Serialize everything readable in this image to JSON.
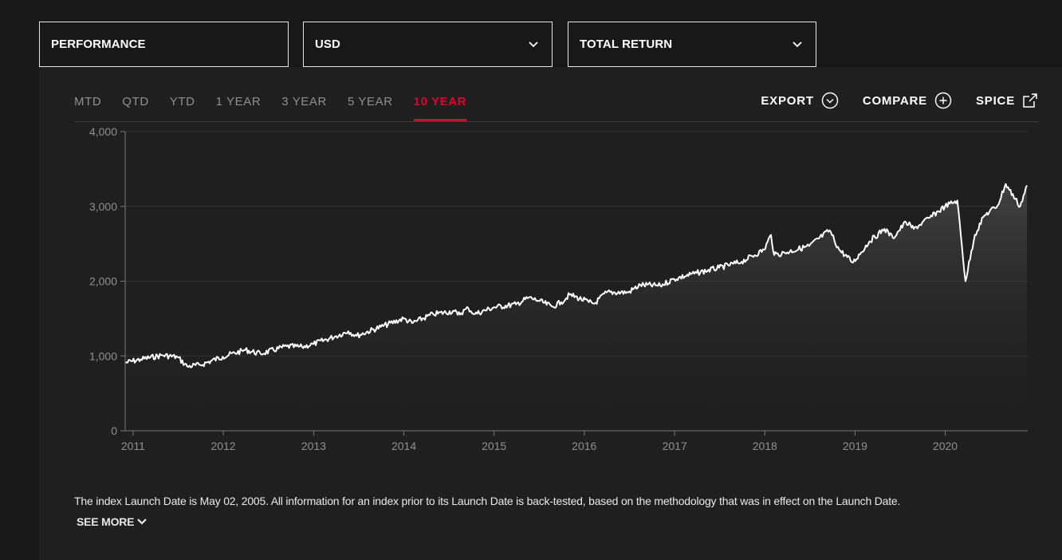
{
  "selectors": [
    {
      "label": "PERFORMANCE",
      "has_dropdown": false
    },
    {
      "label": "USD",
      "has_dropdown": true
    },
    {
      "label": "TOTAL RETURN",
      "has_dropdown": true
    }
  ],
  "tabs": [
    "MTD",
    "QTD",
    "YTD",
    "1 YEAR",
    "3 YEAR",
    "5 YEAR",
    "10 YEAR"
  ],
  "active_tab": "10 YEAR",
  "actions": [
    {
      "label": "EXPORT",
      "icon": "chevron-circle-down-icon"
    },
    {
      "label": "COMPARE",
      "icon": "plus-circle-icon"
    },
    {
      "label": "SPICE",
      "icon": "external-link-icon"
    }
  ],
  "colors": {
    "accent": "#e4002b",
    "line": "#ffffff",
    "background": "#1f1f1f",
    "page": "#181818"
  },
  "note": "The index Launch Date is May 02, 2005. All information for an index prior to its Launch Date is back-tested, based on the methodology that was in effect on the Launch Date.",
  "see_more": "SEE MORE",
  "chart_data": {
    "type": "area",
    "title": "",
    "xlabel": "",
    "ylabel": "",
    "xlim": [
      "2010-11-30",
      "2020-11-30"
    ],
    "ylim": [
      0,
      4000
    ],
    "yticks": [
      0,
      1000,
      2000,
      3000,
      4000
    ],
    "ytick_labels": [
      "0",
      "1,000",
      "2,000",
      "3,000",
      "4,000"
    ],
    "xtick_labels": [
      "2011",
      "2012",
      "2013",
      "2014",
      "2015",
      "2016",
      "2017",
      "2018",
      "2019",
      "2020"
    ],
    "grid": true,
    "legend": "none",
    "series": [
      {
        "x": [
          "2010-11-30",
          "2011-02-01",
          "2011-04-29",
          "2011-06-30",
          "2011-08-08",
          "2011-09-30",
          "2011-12-30",
          "2012-03-30",
          "2012-05-31",
          "2012-09-14",
          "2012-11-15",
          "2012-12-31",
          "2013-03-28",
          "2013-05-21",
          "2013-06-24",
          "2013-09-30",
          "2013-12-31",
          "2014-02-03",
          "2014-04-30",
          "2014-07-24",
          "2014-08-07",
          "2014-09-19",
          "2014-10-15",
          "2014-12-31",
          "2015-03-31",
          "2015-05-21",
          "2015-06-30",
          "2015-08-25",
          "2015-09-30",
          "2015-11-03",
          "2016-01-20",
          "2016-02-11",
          "2016-03-31",
          "2016-06-27",
          "2016-08-15",
          "2016-11-04",
          "2016-12-30",
          "2017-03-31",
          "2017-06-30",
          "2017-09-29",
          "2017-12-29",
          "2018-01-26",
          "2018-02-08",
          "2018-03-23",
          "2018-06-29",
          "2018-09-20",
          "2018-10-29",
          "2018-12-24",
          "2019-02-28",
          "2019-04-30",
          "2019-06-03",
          "2019-07-26",
          "2019-08-27",
          "2019-10-31",
          "2019-12-31",
          "2020-02-19",
          "2020-03-23",
          "2020-04-30",
          "2020-06-08",
          "2020-07-31",
          "2020-09-02",
          "2020-10-30",
          "2020-11-27"
        ],
        "y": [
          910,
          955,
          1010,
          985,
          860,
          880,
          990,
          1080,
          1030,
          1130,
          1120,
          1160,
          1260,
          1330,
          1270,
          1390,
          1500,
          1440,
          1560,
          1600,
          1550,
          1640,
          1560,
          1650,
          1690,
          1780,
          1740,
          1660,
          1720,
          1820,
          1720,
          1700,
          1850,
          1850,
          1950,
          1940,
          2030,
          2110,
          2180,
          2260,
          2420,
          2620,
          2350,
          2380,
          2470,
          2680,
          2420,
          2250,
          2530,
          2700,
          2580,
          2790,
          2700,
          2850,
          3000,
          3080,
          2000,
          2620,
          2880,
          3010,
          3300,
          3000,
          3280
        ]
      }
    ]
  }
}
